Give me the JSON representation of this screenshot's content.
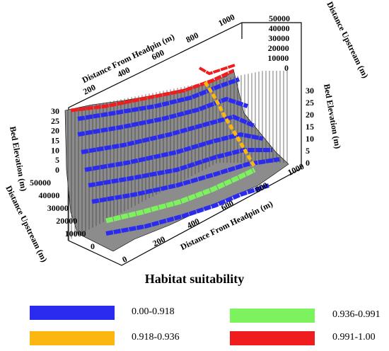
{
  "chart_data": {
    "type": "surface3d",
    "axes": {
      "x_front": {
        "label": "Distance From Headpin (m)",
        "ticks": [
          "0",
          "200",
          "400",
          "600",
          "800",
          "1000"
        ]
      },
      "x_back": {
        "label": "Distance From Headpin (m)",
        "ticks": [
          "200",
          "400",
          "600",
          "800",
          "1000"
        ]
      },
      "y_left": {
        "label": "Distance Upstream (m)",
        "ticks": [
          "0",
          "10000",
          "20000",
          "30000",
          "40000",
          "50000"
        ]
      },
      "y_right": {
        "label": "Distance Upstream (m)",
        "ticks": [
          "0",
          "10000",
          "20000",
          "30000",
          "40000",
          "50000"
        ]
      },
      "z_left": {
        "label": "Bed Elevation (m)",
        "ticks": [
          "0",
          "5",
          "10",
          "15",
          "20",
          "25",
          "30"
        ]
      },
      "z_right": {
        "label": "Bed Elevation (m)",
        "ticks": [
          "0",
          "5",
          "10",
          "15",
          "20",
          "25",
          "30"
        ]
      }
    },
    "xlim": [
      0,
      1000
    ],
    "ylim": [
      0,
      50000
    ],
    "zlim": [
      0,
      30
    ],
    "legend": {
      "title": "Habitat suitability",
      "placement": "bottom",
      "items": [
        {
          "label": "0.00-0.918",
          "color": "#2b2bf0"
        },
        {
          "label": "0.918-0.936",
          "color": "#fbb70f"
        },
        {
          "label": "0.936-0.991",
          "color": "#7cf25e"
        },
        {
          "label": "0.991-1.00",
          "color": "#ef1d1d"
        }
      ]
    }
  }
}
